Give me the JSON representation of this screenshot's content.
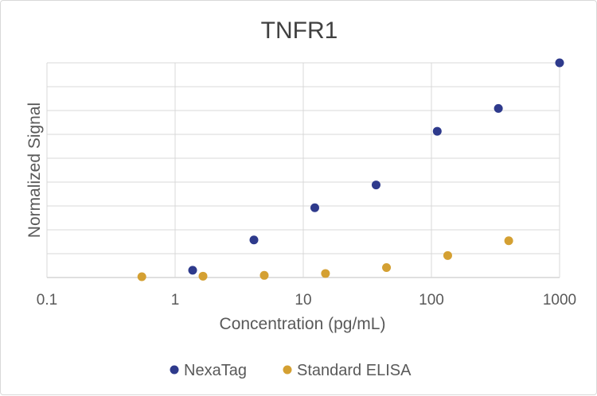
{
  "chart_data": {
    "type": "scatter",
    "title": "TNFR1",
    "xlabel": "Concentration (pg/mL)",
    "ylabel": "Normalized Signal",
    "x_scale": "log",
    "xlim": [
      0.1,
      1000
    ],
    "x_ticks": [
      "0.1",
      "1",
      "10",
      "100",
      "1000"
    ],
    "ylim": [
      0,
      8
    ],
    "y_tick_labels_shown": false,
    "grid": true,
    "legend_position": "bottom",
    "series": [
      {
        "name": "NexaTag",
        "color": "#2e3a8c",
        "points": [
          {
            "x": 1.37,
            "y": 0.27
          },
          {
            "x": 4.12,
            "y": 1.4
          },
          {
            "x": 12.3,
            "y": 2.6
          },
          {
            "x": 37.0,
            "y": 3.45
          },
          {
            "x": 111,
            "y": 5.45
          },
          {
            "x": 333,
            "y": 6.3
          },
          {
            "x": 1000,
            "y": 8.0
          }
        ]
      },
      {
        "name": "Standard ELISA",
        "color": "#d4a032",
        "points": [
          {
            "x": 0.55,
            "y": 0.03
          },
          {
            "x": 1.65,
            "y": 0.05
          },
          {
            "x": 4.96,
            "y": 0.08
          },
          {
            "x": 14.9,
            "y": 0.15
          },
          {
            "x": 44.6,
            "y": 0.37
          },
          {
            "x": 134,
            "y": 0.82
          },
          {
            "x": 401,
            "y": 1.37
          }
        ]
      }
    ]
  }
}
